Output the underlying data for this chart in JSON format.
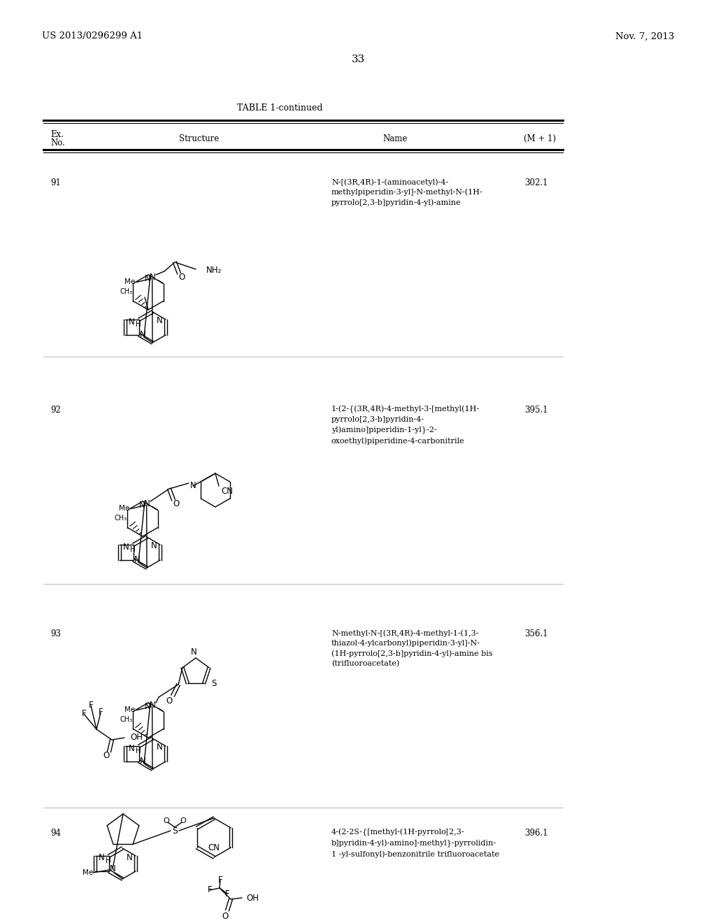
{
  "bg_color": "#ffffff",
  "header_left": "US 2013/0296299 A1",
  "header_right": "Nov. 7, 2013",
  "page_number": "33",
  "table_title": "TABLE 1-continued",
  "rows": [
    {
      "ex_no": "91",
      "name": "N-[(3R,4R)-1-(aminoacetyl)-4-\nmethylpiperidin-3-yl]-N-methyl-N-(1H-\npyrrolo[2,3-b]pyridin-4-yl)-amine",
      "mplus1": "302.1"
    },
    {
      "ex_no": "92",
      "name": "1-(2-{(3R,4R)-4-methyl-3-[methyl(1H-\npyrrolo[2,3-b]pyridin-4-\nyl)amino]piperidin-1-yl}-2-\noxoethyl)piperidine-4-carbonitrile",
      "mplus1": "395.1"
    },
    {
      "ex_no": "93",
      "name": "N-methyl-N-[(3R,4R)-4-methyl-1-(1,3-\nthiazol-4-ylcarbonyl)piperidin-3-yl]-N-\n(1H-pyrrolo[2,3-b]pyridin-4-yl)-amine bis\n(trifluoroacetate)",
      "mplus1": "356.1"
    },
    {
      "ex_no": "94",
      "name": "4-(2-2S-{[methyl-(1H-pyrrolo[2,3-\nb]pyridin-4-yl)-amino]-methyl}-pyrrolidin-\n1 -yl-sulfonyl)-benzonitrile trifluoroacetate",
      "mplus1": "396.1"
    }
  ]
}
